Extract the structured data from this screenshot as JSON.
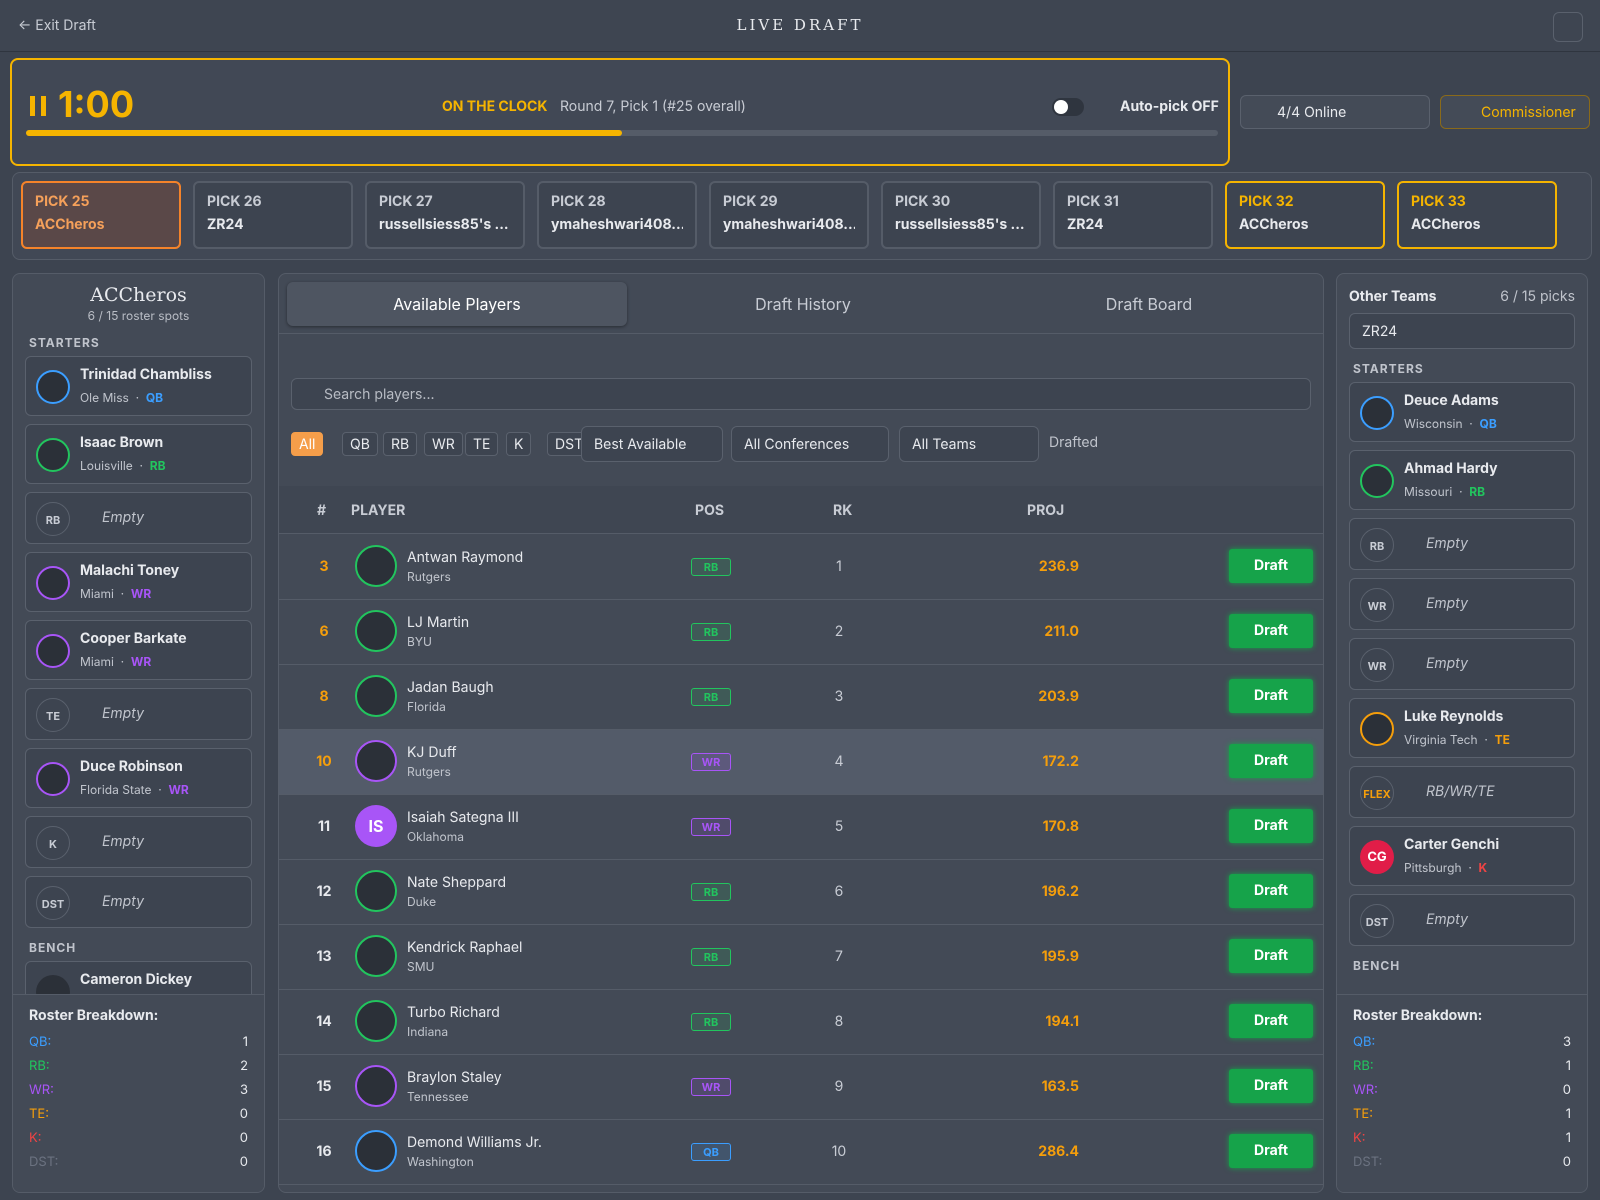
{
  "header": {
    "exit": "Exit Draft",
    "title": "LIVE DRAFT"
  },
  "clock": {
    "time": "1:00",
    "status": "ON THE CLOCK",
    "pick_info": "Round 7, Pick 1 (#25 overall)",
    "autopick": "Auto-pick OFF"
  },
  "online": "4/4 Online",
  "commissioner": "Commissioner",
  "picks": [
    {
      "label": "PICK 25",
      "team": "ACCheros",
      "state": "current"
    },
    {
      "label": "PICK 26",
      "team": "ZR24"
    },
    {
      "label": "PICK 27",
      "team": "russellsiess85's ..."
    },
    {
      "label": "PICK 28",
      "team": "ymaheshwari408..."
    },
    {
      "label": "PICK 29",
      "team": "ymaheshwari408..."
    },
    {
      "label": "PICK 30",
      "team": "russellsiess85's ..."
    },
    {
      "label": "PICK 31",
      "team": "ZR24"
    },
    {
      "label": "PICK 32",
      "team": "ACCheros",
      "state": "mine"
    },
    {
      "label": "PICK 33",
      "team": "ACCheros",
      "state": "mine"
    }
  ],
  "left_team": {
    "name": "ACCheros",
    "spots": "6 / 15 roster spots",
    "starters_label": "STARTERS",
    "starters": [
      {
        "name": "Trinidad Chambliss",
        "school": "Ole Miss",
        "pos": "QB"
      },
      {
        "name": "Isaac Brown",
        "school": "Louisville",
        "pos": "RB"
      },
      {
        "slot": "RB",
        "text": "Empty"
      },
      {
        "name": "Malachi Toney",
        "school": "Miami",
        "pos": "WR"
      },
      {
        "name": "Cooper Barkate",
        "school": "Miami",
        "pos": "WR"
      },
      {
        "slot": "TE",
        "text": "Empty"
      },
      {
        "name": "Duce Robinson",
        "school": "Florida State",
        "pos": "WR"
      },
      {
        "slot": "K",
        "text": "Empty"
      },
      {
        "slot": "DST",
        "text": "Empty"
      }
    ],
    "bench_label": "BENCH",
    "bench": [
      {
        "name": "Cameron Dickey"
      }
    ],
    "breakdown_title": "Roster Breakdown:",
    "breakdown": [
      {
        "label": "QB:",
        "count": "1"
      },
      {
        "label": "RB:",
        "count": "2"
      },
      {
        "label": "WR:",
        "count": "3"
      },
      {
        "label": "TE:",
        "count": "0"
      },
      {
        "label": "K:",
        "count": "0"
      },
      {
        "label": "DST:",
        "count": "0"
      }
    ]
  },
  "center": {
    "tabs": [
      "Available Players",
      "Draft History",
      "Draft Board"
    ],
    "search": "Search players...",
    "positions": [
      "All",
      "QB",
      "RB",
      "WR",
      "TE",
      "K",
      "DST"
    ],
    "sort": "Best Available",
    "conferences": "All Conferences",
    "teams": "All Teams",
    "drafted": "Drafted",
    "columns": [
      "#",
      "PLAYER",
      "POS",
      "RK",
      "PROJ"
    ],
    "draft_button": "Draft",
    "players": [
      {
        "num": "3",
        "name": "Antwan Raymond",
        "school": "Rutgers",
        "pos": "RB",
        "rk": "1",
        "proj": "236.9",
        "num_color": "#f59e0b"
      },
      {
        "num": "6",
        "name": "LJ Martin",
        "school": "BYU",
        "pos": "RB",
        "rk": "2",
        "proj": "211.0",
        "num_color": "#f59e0b"
      },
      {
        "num": "8",
        "name": "Jadan Baugh",
        "school": "Florida",
        "pos": "RB",
        "rk": "3",
        "proj": "203.9",
        "num_color": "#f59e0b"
      },
      {
        "num": "10",
        "name": "KJ Duff",
        "school": "Rutgers",
        "pos": "WR",
        "rk": "4",
        "proj": "172.2",
        "num_color": "#f59e0b"
      },
      {
        "num": "11",
        "name": "Isaiah Sategna III",
        "school": "Oklahoma",
        "pos": "WR",
        "rk": "5",
        "proj": "170.8",
        "initials": "IS"
      },
      {
        "num": "12",
        "name": "Nate Sheppard",
        "school": "Duke",
        "pos": "RB",
        "rk": "6",
        "proj": "196.2"
      },
      {
        "num": "13",
        "name": "Kendrick Raphael",
        "school": "SMU",
        "pos": "RB",
        "rk": "7",
        "proj": "195.9"
      },
      {
        "num": "14",
        "name": "Turbo Richard",
        "school": "Indiana",
        "pos": "RB",
        "rk": "8",
        "proj": "194.1"
      },
      {
        "num": "15",
        "name": "Braylon Staley",
        "school": "Tennessee",
        "pos": "WR",
        "rk": "9",
        "proj": "163.5"
      },
      {
        "num": "16",
        "name": "Demond Williams Jr.",
        "school": "Washington",
        "pos": "QB",
        "rk": "10",
        "proj": "286.4"
      }
    ]
  },
  "right_team": {
    "title": "Other Teams",
    "picks": "6 / 15 picks",
    "select": "ZR24",
    "starters_label": "STARTERS",
    "starters": [
      {
        "name": "Deuce Adams",
        "school": "Wisconsin",
        "pos": "QB"
      },
      {
        "name": "Ahmad Hardy",
        "school": "Missouri",
        "pos": "RB"
      },
      {
        "slot": "RB",
        "text": "Empty"
      },
      {
        "slot": "WR",
        "text": "Empty"
      },
      {
        "slot": "WR",
        "text": "Empty"
      },
      {
        "name": "Luke Reynolds",
        "school": "Virginia Tech",
        "pos": "TE"
      },
      {
        "slot": "FLEX",
        "text": "RB/WR/TE"
      },
      {
        "name": "Carter Genchi",
        "school": "Pittsburgh",
        "pos": "K",
        "initials": "CG"
      },
      {
        "slot": "DST",
        "text": "Empty"
      }
    ],
    "bench_label": "BENCH",
    "breakdown_title": "Roster Breakdown:",
    "breakdown": [
      {
        "label": "QB:",
        "count": "3"
      },
      {
        "label": "RB:",
        "count": "1"
      },
      {
        "label": "WR:",
        "count": "0"
      },
      {
        "label": "TE:",
        "count": "1"
      },
      {
        "label": "K:",
        "count": "1"
      },
      {
        "label": "DST:",
        "count": "0"
      }
    ]
  }
}
